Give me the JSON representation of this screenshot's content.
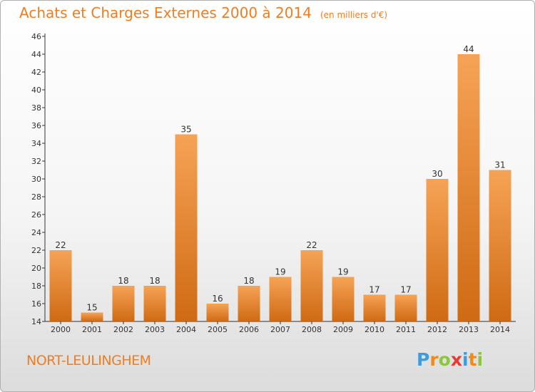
{
  "title": "Achats et Charges Externes 2000 à 2014",
  "subtitle": "(en milliers d'€)",
  "commune": "NORT-LEULINGHEM",
  "logo": {
    "letters": [
      "P",
      "r",
      "o",
      "x",
      "i",
      "t",
      "i"
    ],
    "colors": [
      "#3d9be0",
      "#f08a1c",
      "#8cc63f",
      "#e63b2e",
      "#3d9be0",
      "#f08a1c",
      "#8cc63f"
    ]
  },
  "colors": {
    "accent": "#ef7d22",
    "bar_light": "#f6a356",
    "bar_dark": "#cf6a13"
  },
  "chart_data": {
    "type": "bar",
    "categories": [
      "2000",
      "2001",
      "2002",
      "2003",
      "2004",
      "2005",
      "2006",
      "2007",
      "2008",
      "2009",
      "2010",
      "2011",
      "2012",
      "2013",
      "2014"
    ],
    "values": [
      22,
      15,
      18,
      18,
      35,
      16,
      18,
      19,
      22,
      19,
      17,
      17,
      30,
      44,
      31
    ],
    "ylim": [
      14,
      46
    ],
    "yticks": [
      14,
      16,
      18,
      20,
      22,
      24,
      26,
      28,
      30,
      32,
      34,
      36,
      38,
      40,
      42,
      44,
      46
    ],
    "grid": false,
    "legend": "none"
  }
}
